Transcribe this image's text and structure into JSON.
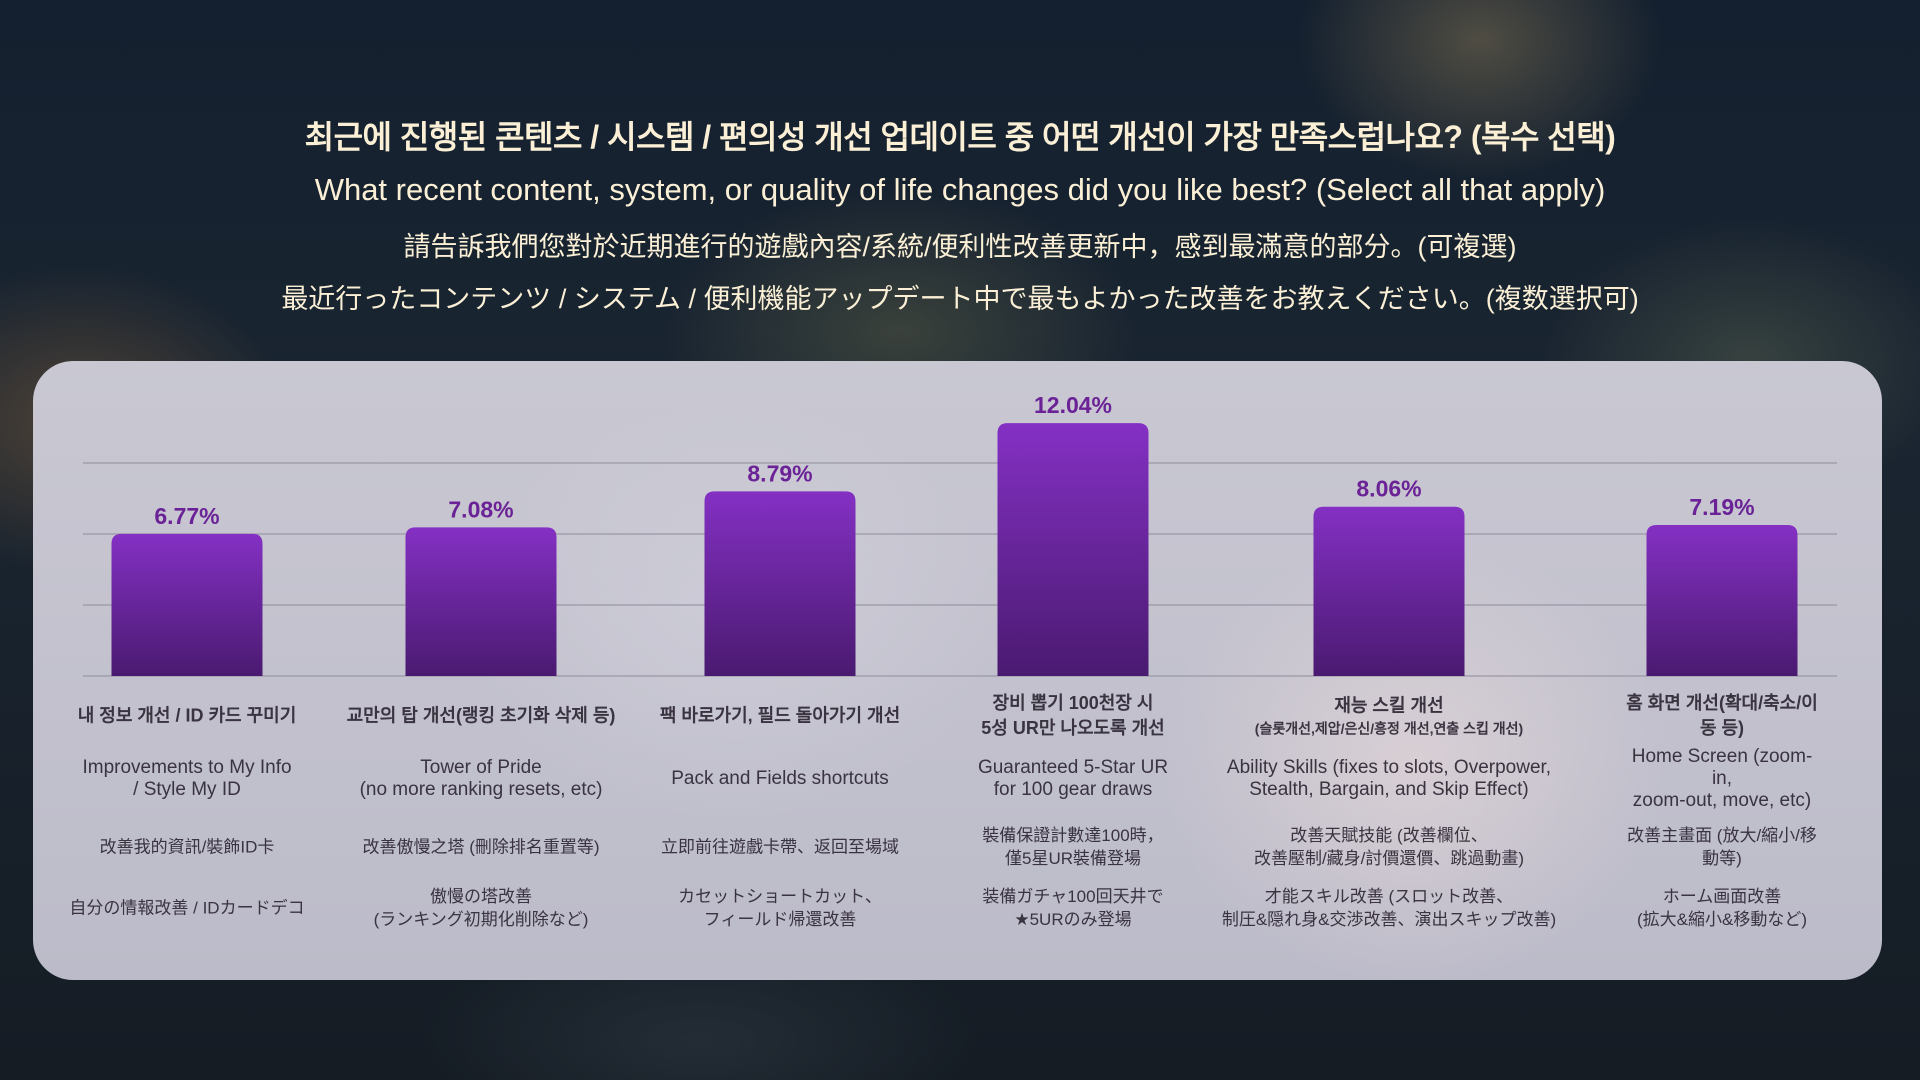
{
  "titles": {
    "ko": "최근에 진행된 콘텐츠 / 시스템 / 편의성 개선 업데이트 중 어떤 개선이 가장 만족스럽나요? (복수 선택)",
    "en": "What recent content, system, or quality of life changes did you like best? (Select all that apply)",
    "zh": "請告訴我們您對於近期進行的遊戲內容/系統/便利性改善更新中，感到最滿意的部分。(可複選)",
    "ja": "最近行ったコンテンツ / システム / 便利機能アップデート中で最もよかった改善をお教えください。(複数選択可)"
  },
  "colors": {
    "bar_top": "#8430c4",
    "bar_bottom": "#4a1a70",
    "value_label": "#6a2296",
    "text": "#3a3340",
    "title": "#fbf0d6"
  },
  "chart_data": {
    "type": "bar",
    "unit": "%",
    "grid": true,
    "values": [
      6.77,
      7.08,
      8.79,
      12.04,
      8.06,
      7.19
    ],
    "value_labels": [
      "6.77%",
      "7.08%",
      "8.79%",
      "12.04%",
      "8.06%",
      "7.19%"
    ],
    "categories": [
      {
        "ko": "내 정보 개선 / ID 카드 꾸미기",
        "ko_sub": "",
        "en": "Improvements to My Info\n/ Style My ID",
        "zh": "改善我的資訊/裝飾ID卡",
        "ja": "自分の情報改善 / IDカードデコ"
      },
      {
        "ko": "교만의 탑 개선(랭킹 초기화 삭제 등)",
        "ko_sub": "",
        "en": "Tower of Pride\n(no more ranking resets, etc)",
        "zh": "改善傲慢之塔 (刪除排名重置等)",
        "ja": "傲慢の塔改善\n(ランキング初期化削除など)"
      },
      {
        "ko": "팩 바로가기, 필드 돌아가기 개선",
        "ko_sub": "",
        "en": "Pack and Fields shortcuts",
        "zh": "立即前往遊戲卡帶、返回至場域",
        "ja": "カセットショートカット、\nフィールド帰還改善"
      },
      {
        "ko": "장비 뽑기 100천장 시\n5성 UR만 나오도록 개선",
        "ko_sub": "",
        "en": "Guaranteed 5-Star UR\nfor 100 gear draws",
        "zh": "裝備保證計數達100時，\n僅5星UR裝備登場",
        "ja": "装備ガチャ100回天井で\n★5URのみ登場"
      },
      {
        "ko": "재능 스킬 개선",
        "ko_sub": "(슬롯개선,제압/은신/흥정 개선,연출 스킵 개선)",
        "en": "Ability Skills (fixes to slots, Overpower,\nStealth, Bargain, and Skip Effect)",
        "zh": "改善天賦技能 (改善欄位、\n改善壓制/藏身/討價還價、跳過動畫)",
        "ja": "才能スキル改善 (スロット改善、\n制圧&隠れ身&交渉改善、演出スキップ改善)"
      },
      {
        "ko": "홈 화면 개선(확대/축소/이동 등)",
        "ko_sub": "",
        "en": "Home Screen (zoom-in,\nzoom-out, move, etc)",
        "zh": "改善主畫面 (放大/縮小/移動等)",
        "ja": "ホーム画面改善\n(拡大&縮小&移動など)"
      }
    ]
  }
}
